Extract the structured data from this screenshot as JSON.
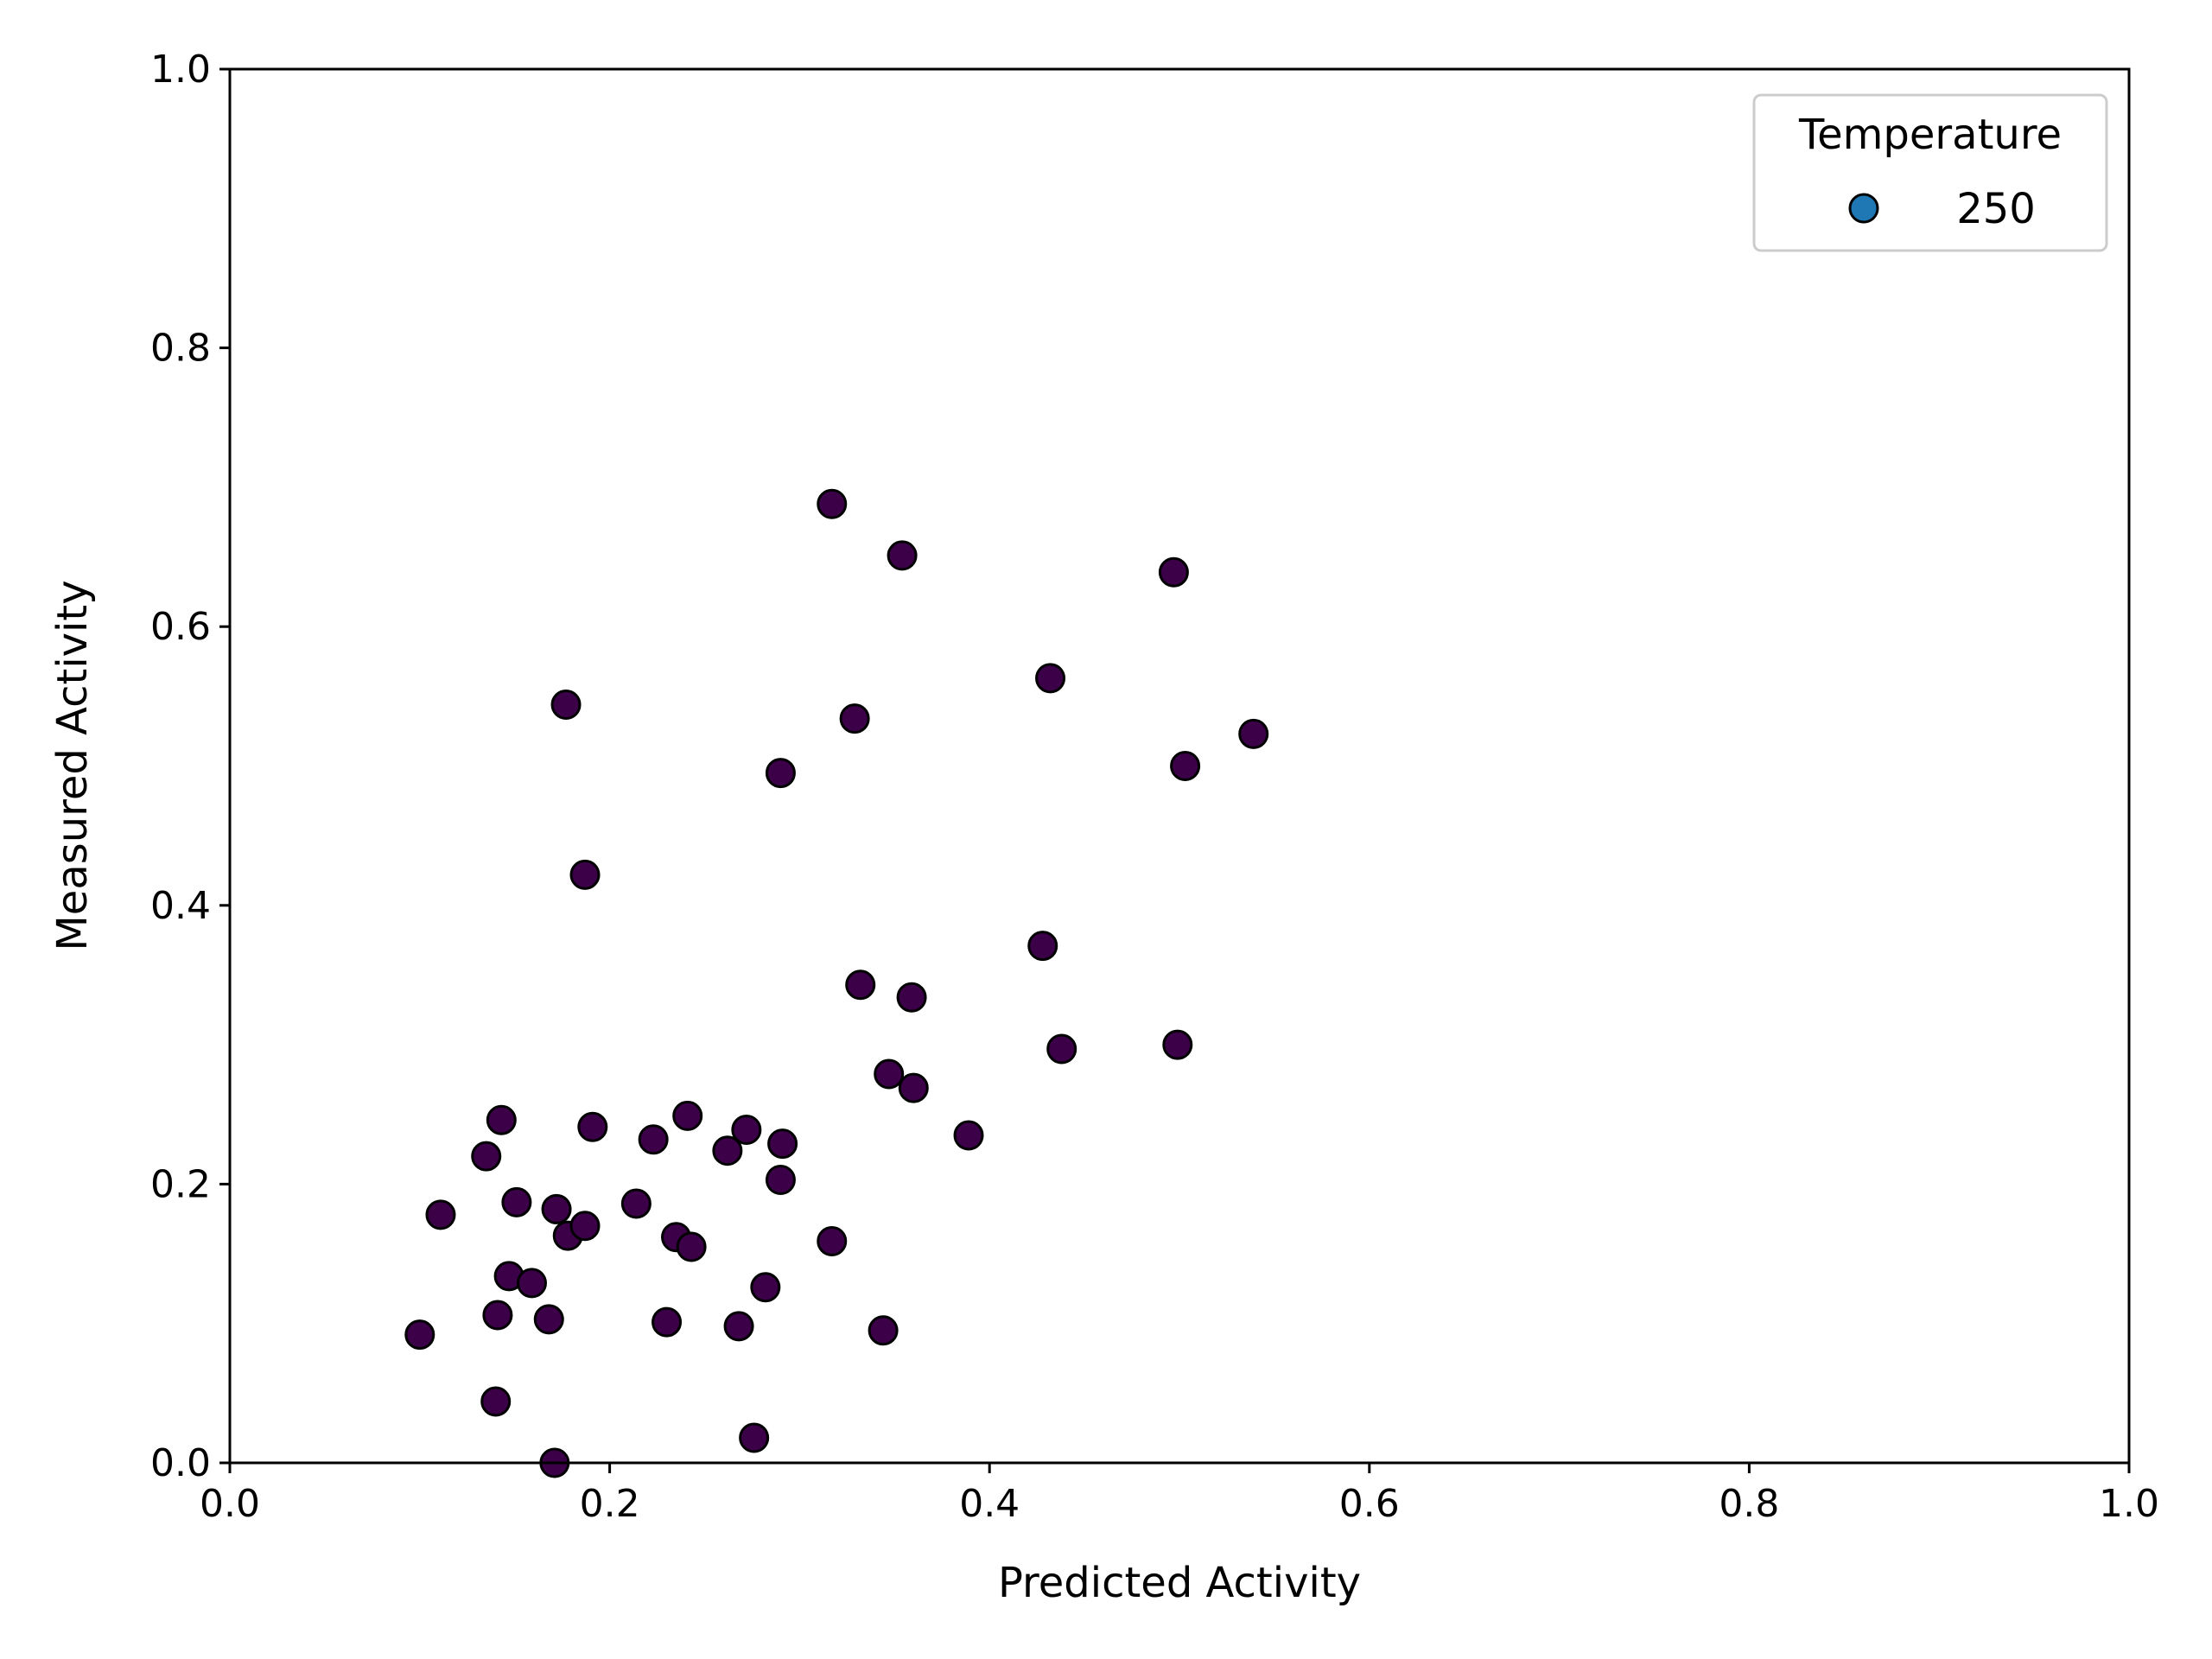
{
  "chart_data": {
    "type": "scatter",
    "title": "",
    "xlabel": "Predicted Activity",
    "ylabel": "Measured Activity",
    "xlim": [
      0.0,
      1.0
    ],
    "ylim": [
      0.0,
      1.0
    ],
    "xticks": [
      "0.0",
      "0.2",
      "0.4",
      "0.6",
      "0.8",
      "1.0"
    ],
    "yticks": [
      "0.0",
      "0.2",
      "0.4",
      "0.6",
      "0.8",
      "1.0"
    ],
    "grid": false,
    "legend": {
      "title": "Temperature",
      "placement": "top-right",
      "entries": [
        {
          "label": "250",
          "color": "#1f77b4"
        }
      ]
    },
    "series": [
      {
        "name": "250",
        "marker_color": "#3b0048",
        "edge_color": "#000000",
        "points": [
          [
            0.1,
            0.092
          ],
          [
            0.111,
            0.178
          ],
          [
            0.135,
            0.22
          ],
          [
            0.14,
            0.044
          ],
          [
            0.141,
            0.106
          ],
          [
            0.143,
            0.246
          ],
          [
            0.147,
            0.134
          ],
          [
            0.151,
            0.187
          ],
          [
            0.159,
            0.129
          ],
          [
            0.168,
            0.103
          ],
          [
            0.171,
            0.0
          ],
          [
            0.172,
            0.182
          ],
          [
            0.177,
            0.544
          ],
          [
            0.178,
            0.163
          ],
          [
            0.187,
            0.422
          ],
          [
            0.187,
            0.17
          ],
          [
            0.191,
            0.241
          ],
          [
            0.214,
            0.186
          ],
          [
            0.223,
            0.232
          ],
          [
            0.23,
            0.101
          ],
          [
            0.235,
            0.162
          ],
          [
            0.241,
            0.249
          ],
          [
            0.243,
            0.155
          ],
          [
            0.262,
            0.224
          ],
          [
            0.268,
            0.098
          ],
          [
            0.272,
            0.239
          ],
          [
            0.276,
            0.018
          ],
          [
            0.282,
            0.126
          ],
          [
            0.29,
            0.495
          ],
          [
            0.29,
            0.203
          ],
          [
            0.291,
            0.229
          ],
          [
            0.317,
            0.688
          ],
          [
            0.317,
            0.159
          ],
          [
            0.329,
            0.534
          ],
          [
            0.332,
            0.343
          ],
          [
            0.344,
            0.095
          ],
          [
            0.347,
            0.279
          ],
          [
            0.354,
            0.651
          ],
          [
            0.359,
            0.334
          ],
          [
            0.36,
            0.269
          ],
          [
            0.389,
            0.235
          ],
          [
            0.428,
            0.371
          ],
          [
            0.432,
            0.563
          ],
          [
            0.438,
            0.297
          ],
          [
            0.497,
            0.639
          ],
          [
            0.499,
            0.3
          ],
          [
            0.503,
            0.5
          ],
          [
            0.539,
            0.523
          ]
        ]
      }
    ]
  }
}
